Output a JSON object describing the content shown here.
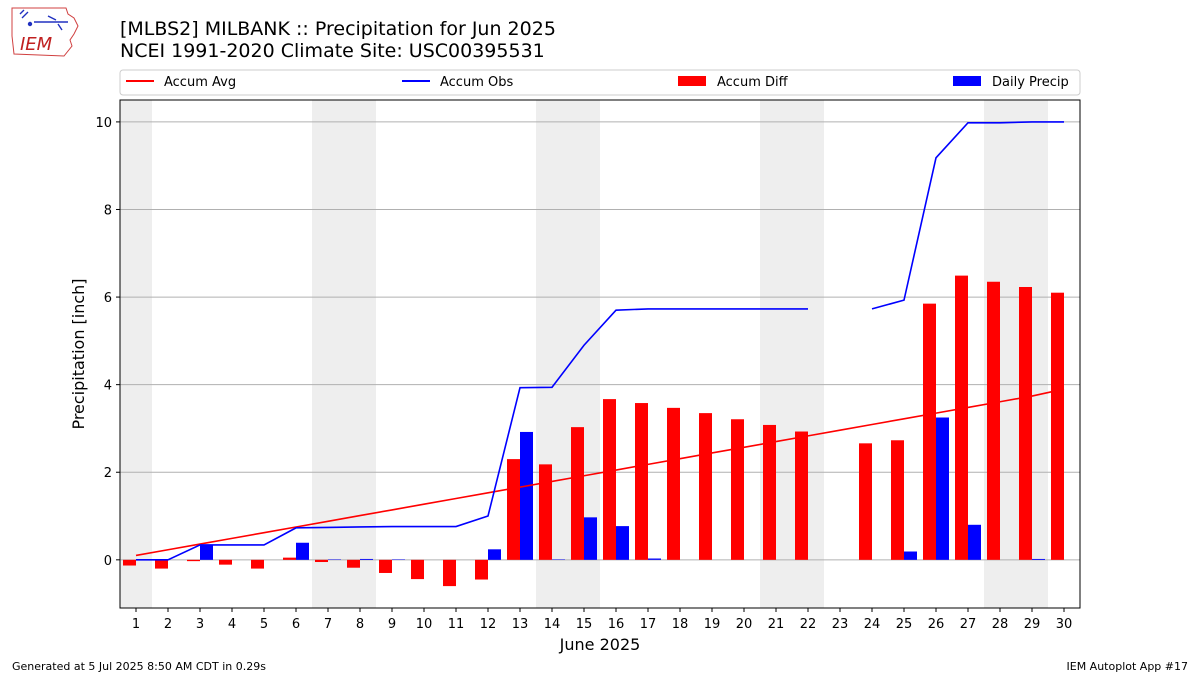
{
  "logo": {
    "text": "IEM",
    "icon": "iowa-state-outline-icon"
  },
  "header": {
    "title_line1": "[MLBS2] MILBANK :: Precipitation for Jun 2025",
    "title_line2": "NCEI 1991-2020 Climate Site: USC00395531"
  },
  "footer": {
    "left": "Generated at 5 Jul 2025 8:50 AM CDT in 0.29s",
    "right": "IEM Autoplot App #17"
  },
  "colors": {
    "avg": "#ff0000",
    "obs": "#0000ff",
    "diff": "#ff0000",
    "daily": "#0000ff",
    "weekend_shade": "#eeeeee",
    "grid": "#b0b0b0"
  },
  "chart_data": {
    "type": "bar",
    "xlabel": "June 2025",
    "ylabel": "Precipitation [inch]",
    "ylim": [
      -1.1,
      10.5
    ],
    "yticks": [
      0,
      2,
      4,
      6,
      8,
      10
    ],
    "grid": "horizontal",
    "legend_placement": "top",
    "days": [
      1,
      2,
      3,
      4,
      5,
      6,
      7,
      8,
      9,
      10,
      11,
      12,
      13,
      14,
      15,
      16,
      17,
      18,
      19,
      20,
      21,
      22,
      23,
      24,
      25,
      26,
      27,
      28,
      29,
      30
    ],
    "weekend_shaded_days": [
      1,
      7,
      8,
      14,
      15,
      21,
      22,
      28,
      29
    ],
    "series": [
      {
        "name": "Accum Avg",
        "kind": "line",
        "values": [
          0.1,
          0.23,
          0.36,
          0.49,
          0.62,
          0.75,
          0.88,
          1.01,
          1.14,
          1.27,
          1.4,
          1.53,
          1.66,
          1.79,
          1.92,
          2.05,
          2.18,
          2.31,
          2.44,
          2.57,
          2.7,
          2.83,
          2.96,
          3.09,
          3.22,
          3.35,
          3.48,
          3.61,
          3.74,
          3.9
        ]
      },
      {
        "name": "Accum Obs",
        "kind": "line",
        "values": [
          0.0,
          0.0,
          0.34,
          0.34,
          0.34,
          0.73,
          0.74,
          0.75,
          0.76,
          0.76,
          0.76,
          1.0,
          3.93,
          3.94,
          4.9,
          5.7,
          5.73,
          5.73,
          5.73,
          5.73,
          5.73,
          5.73,
          null,
          5.73,
          5.93,
          9.18,
          9.98,
          9.98,
          10.0,
          10.0
        ]
      },
      {
        "name": "Accum Diff",
        "kind": "bar",
        "values": [
          -0.13,
          -0.2,
          -0.03,
          -0.11,
          -0.2,
          0.05,
          -0.05,
          -0.18,
          -0.3,
          -0.44,
          -0.6,
          -0.45,
          2.3,
          2.18,
          3.03,
          3.67,
          3.58,
          3.47,
          3.35,
          3.21,
          3.08,
          2.93,
          null,
          2.66,
          2.73,
          5.85,
          6.49,
          6.35,
          6.23,
          6.1
        ]
      },
      {
        "name": "Daily Precip",
        "kind": "bar",
        "values": [
          0.0,
          0.0,
          0.34,
          0.0,
          0.0,
          0.39,
          0.01,
          0.02,
          0.01,
          0.0,
          0.0,
          0.24,
          2.92,
          0.01,
          0.97,
          0.77,
          0.03,
          0.0,
          0.0,
          0.0,
          0.0,
          0.0,
          null,
          0.0,
          0.19,
          3.25,
          0.8,
          0.0,
          0.02,
          0.0
        ]
      }
    ]
  }
}
